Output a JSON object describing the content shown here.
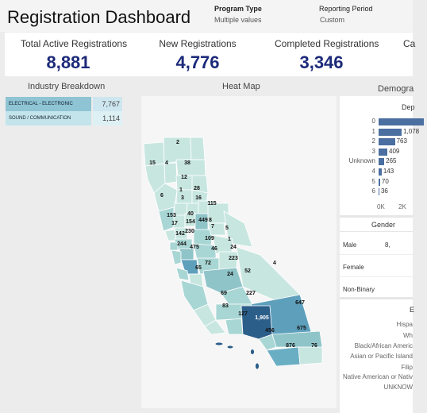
{
  "header": {
    "title": "Registration Dashboard",
    "filters": [
      {
        "label": "Program Type",
        "value": "Multiple values"
      },
      {
        "label": "Reporting Period",
        "value": "Custom"
      }
    ]
  },
  "kpis": [
    {
      "label": "Total Active Registrations",
      "value": "8,881"
    },
    {
      "label": "New Registrations",
      "value": "4,776"
    },
    {
      "label": "Completed Registrations",
      "value": "3,346"
    },
    {
      "label": "Ca",
      "value": ""
    }
  ],
  "industry": {
    "title": "Industry Breakdown",
    "rows": [
      {
        "name": "ELECTRICAL - ELECTRONIC",
        "value": "7,767"
      },
      {
        "name": "SOUND / COMMUNICATION",
        "value": "1,114"
      }
    ]
  },
  "map": {
    "title": "Heat Map",
    "colors": {
      "low": "#c8e6e0",
      "mid": "#8fc4c8",
      "high": "#5ea0bc",
      "max": "#2c5e8a"
    },
    "labels": [
      "2",
      "15",
      "4",
      "38",
      "12",
      "28",
      "6",
      "1",
      "3",
      "16",
      "115",
      "153",
      "40",
      "8",
      "17",
      "154",
      "449",
      "7",
      "142",
      "230",
      "5",
      "244",
      "475",
      "109",
      "1",
      "46",
      "24",
      "72",
      "65",
      "223",
      "4",
      "52",
      "24",
      "227",
      "69",
      "83",
      "647",
      "127",
      "1,905",
      "456",
      "675",
      "876",
      "76"
    ]
  },
  "demographics": {
    "title": "Demogra",
    "dependents": {
      "title": "Dep",
      "rows": [
        {
          "label": "0",
          "value": "",
          "shown": ""
        },
        {
          "label": "1",
          "value": 1078,
          "shown": "1,078"
        },
        {
          "label": "2",
          "value": 763,
          "shown": "763"
        },
        {
          "label": "3",
          "value": 409,
          "shown": "409"
        },
        {
          "label": "Unknown",
          "value": 265,
          "shown": "265"
        },
        {
          "label": "4",
          "value": 143,
          "shown": "143"
        },
        {
          "label": "5",
          "value": 70,
          "shown": "70"
        },
        {
          "label": "6",
          "value": 36,
          "shown": "36"
        }
      ],
      "axis": [
        "0K",
        "2K"
      ]
    },
    "gender": {
      "title": "Gender",
      "rows": [
        {
          "label": "Male",
          "value": "8,"
        },
        {
          "label": "Female",
          "value": ""
        },
        {
          "label": "Non-Binary",
          "value": ""
        }
      ]
    },
    "ethnicity": {
      "title": "E",
      "rows": [
        "Hispa",
        "Wh",
        "Black/African Americ",
        "Asian or Pacific Island",
        "Filip",
        "Native American or Nativ",
        "UNKNOW"
      ]
    }
  }
}
